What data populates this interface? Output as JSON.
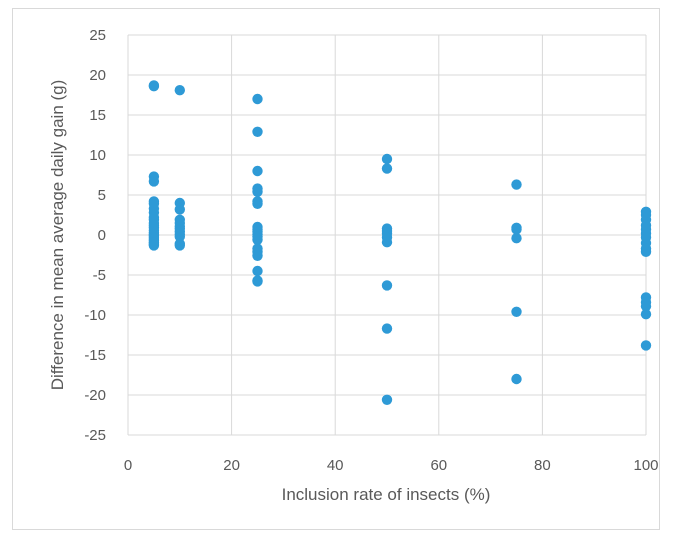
{
  "chart_data": {
    "type": "scatter",
    "title": "",
    "xlabel": "Inclusion rate of insects (%)",
    "ylabel": "Difference in mean average daily gain (g)",
    "xlim": [
      0,
      100
    ],
    "ylim": [
      -25,
      25
    ],
    "x_ticks": [
      0,
      20,
      40,
      60,
      80,
      100
    ],
    "y_ticks": [
      -25,
      -20,
      -15,
      -10,
      -5,
      0,
      5,
      10,
      15,
      20,
      25
    ],
    "grid": "major gridlines on both axes",
    "legend": "none",
    "color": "#2e9ad6",
    "series": [
      {
        "x": [
          5,
          5,
          5,
          5,
          5,
          5,
          5,
          5,
          5,
          5,
          5,
          5,
          5,
          5,
          5,
          5,
          5,
          5,
          5,
          5,
          5,
          5,
          5,
          5,
          10,
          10,
          10,
          10,
          10,
          10,
          10,
          10,
          10,
          10,
          10,
          10,
          25,
          25,
          25,
          25,
          25,
          25,
          25,
          25,
          25,
          25,
          25,
          25,
          25,
          25,
          25,
          25,
          25,
          25,
          25,
          50,
          50,
          50,
          50,
          50,
          50,
          50,
          50,
          50,
          50,
          75,
          75,
          75,
          75,
          75,
          75,
          100,
          100,
          100,
          100,
          100,
          100,
          100,
          100,
          100,
          100,
          100,
          100,
          100,
          100,
          100
        ],
        "y": [
          18.7,
          18.6,
          7.3,
          6.7,
          4.2,
          3.9,
          3.3,
          2.8,
          2.2,
          1.9,
          1.5,
          1.2,
          0.9,
          0.6,
          0.3,
          0.1,
          -0.1,
          -0.3,
          -0.5,
          -0.7,
          -0.9,
          -1.0,
          -1.2,
          -1.3,
          18.1,
          4.0,
          3.2,
          1.9,
          1.5,
          1.1,
          0.8,
          0.4,
          0.1,
          -0.2,
          -1.1,
          -1.3,
          17.0,
          12.9,
          8.0,
          5.8,
          5.4,
          4.2,
          3.9,
          1.0,
          0.7,
          0.4,
          0.1,
          -0.2,
          -0.6,
          -1.7,
          -2.1,
          -2.6,
          -4.5,
          -5.7,
          -5.8,
          9.5,
          8.3,
          0.8,
          0.5,
          0.2,
          -0.3,
          -0.9,
          -6.3,
          -11.7,
          -20.6,
          6.3,
          0.9,
          0.7,
          -0.4,
          -9.6,
          -18.0,
          2.9,
          2.5,
          1.9,
          1.2,
          0.7,
          0.2,
          -0.3,
          -1.0,
          -1.7,
          -2.1,
          -7.8,
          -8.4,
          -8.9,
          -9.9,
          -13.8
        ]
      }
    ]
  }
}
